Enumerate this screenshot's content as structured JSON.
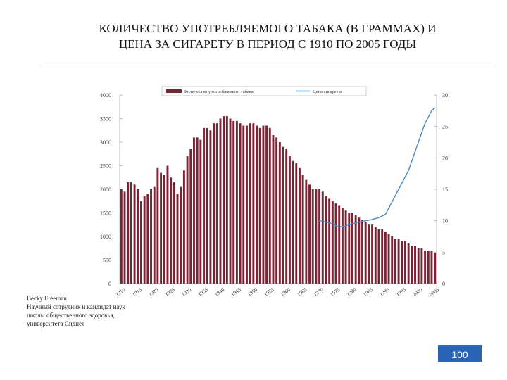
{
  "slide": {
    "title_line1": "КОЛИЧЕСТВО УПОТРЕБЛЯЕМОГО ТАБАКА (В ГРАММАХ) И",
    "title_line2": "ЦЕНА ЗА СИГАРЕТУ В ПЕРИОД С 1910 ПО 2005 ГОДЫ",
    "credit_lines": [
      "Becky Freeman",
      "Научный сотрудник и кандидат наук",
      "школы общественного здоровья,",
      "университета Сиднея"
    ],
    "page_number": "100"
  },
  "colors": {
    "bar": "#7b2233",
    "line": "#4a86c8",
    "page_badge": "#2a64b4"
  },
  "chart_data": {
    "type": "bar",
    "x": [
      1910,
      1911,
      1912,
      1913,
      1914,
      1915,
      1916,
      1917,
      1918,
      1919,
      1920,
      1921,
      1922,
      1923,
      1924,
      1925,
      1926,
      1927,
      1928,
      1929,
      1930,
      1931,
      1932,
      1933,
      1934,
      1935,
      1936,
      1937,
      1938,
      1939,
      1940,
      1941,
      1942,
      1943,
      1944,
      1945,
      1946,
      1947,
      1948,
      1949,
      1950,
      1951,
      1952,
      1953,
      1954,
      1955,
      1956,
      1957,
      1958,
      1959,
      1960,
      1961,
      1962,
      1963,
      1964,
      1965,
      1966,
      1967,
      1968,
      1969,
      1970,
      1971,
      1972,
      1973,
      1974,
      1975,
      1976,
      1977,
      1978,
      1979,
      1980,
      1981,
      1982,
      1983,
      1984,
      1985,
      1986,
      1987,
      1988,
      1989,
      1990,
      1991,
      1992,
      1993,
      1994,
      1995,
      1996,
      1997,
      1998,
      1999,
      2000,
      2001,
      2002,
      2003,
      2004,
      2005
    ],
    "series": [
      {
        "name": "Количество употребляемого табака",
        "axis": "left",
        "values": [
          2000,
          1950,
          2150,
          2150,
          2100,
          2000,
          1750,
          1850,
          1900,
          2000,
          2050,
          2450,
          2350,
          2300,
          2500,
          2250,
          2150,
          1900,
          2050,
          2400,
          2700,
          2850,
          3100,
          3100,
          3050,
          3300,
          3300,
          3250,
          3400,
          3400,
          3500,
          3550,
          3550,
          3500,
          3450,
          3450,
          3400,
          3350,
          3350,
          3400,
          3400,
          3350,
          3300,
          3350,
          3350,
          3300,
          3150,
          3100,
          3000,
          2900,
          2850,
          2700,
          2600,
          2550,
          2450,
          2300,
          2200,
          2100,
          2000,
          2000,
          2000,
          1950,
          1850,
          1800,
          1750,
          1700,
          1650,
          1600,
          1550,
          1500,
          1500,
          1450,
          1400,
          1350,
          1300,
          1250,
          1250,
          1200,
          1150,
          1150,
          1100,
          1050,
          1000,
          950,
          950,
          900,
          900,
          850,
          800,
          800,
          750,
          750,
          700,
          700,
          700,
          650
        ]
      },
      {
        "name": "Цена сигареты",
        "axis": "right",
        "x": [
          1970,
          1972,
          1974,
          1976,
          1978,
          1980,
          1982,
          1984,
          1986,
          1988,
          1990,
          1991,
          1992,
          1993,
          1994,
          1995,
          1996,
          1997,
          1998,
          1999,
          2000,
          2001,
          2002,
          2003,
          2004,
          2005
        ],
        "values": [
          10,
          9.8,
          9.5,
          9,
          9.2,
          9.5,
          9.8,
          10,
          10.2,
          10.5,
          11,
          12,
          13,
          14,
          15,
          16,
          17,
          18,
          19.5,
          21,
          22.5,
          24,
          25.5,
          26.5,
          27.5,
          28
        ]
      }
    ],
    "ylim_left": [
      0,
      4000
    ],
    "yticks_left": [
      "4000",
      "3500",
      "3000",
      "2500",
      "2000",
      "1500",
      "1000",
      "500",
      "0"
    ],
    "ylim_right": [
      0,
      30
    ],
    "yticks_right": [
      "30",
      "25",
      "20",
      "15",
      "10",
      "5",
      "0"
    ],
    "xticks": [
      "1910",
      "1915",
      "1920",
      "1925",
      "1930",
      "1935",
      "1940",
      "1945",
      "1950",
      "1955",
      "1960",
      "1965",
      "1970",
      "1975",
      "1980",
      "1985",
      "1990",
      "1995",
      "2000",
      "2005"
    ],
    "legend": [
      "Количество употребляемого табака",
      "Цена сигареты"
    ]
  }
}
